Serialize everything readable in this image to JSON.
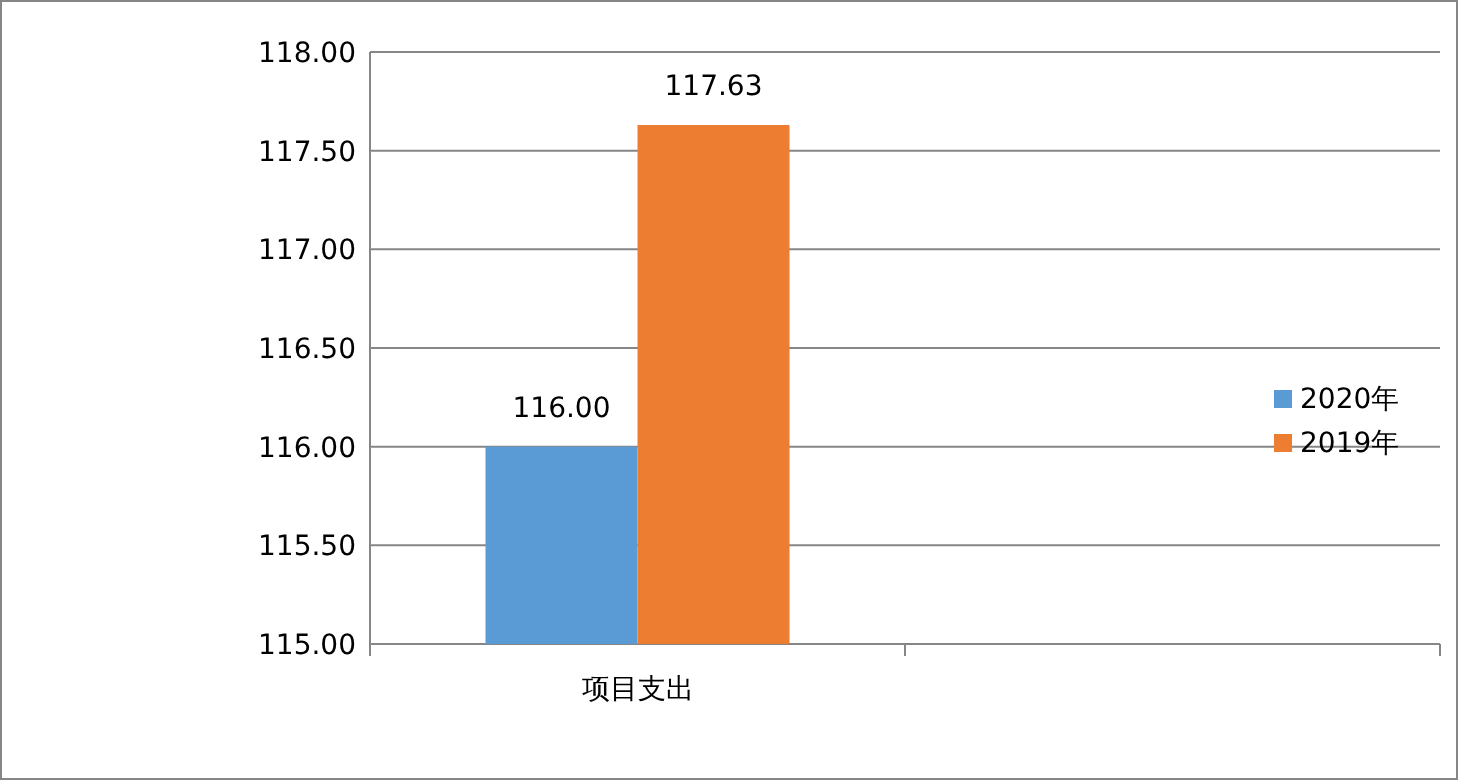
{
  "chart_data": {
    "type": "bar",
    "categories": [
      "项目支出",
      null
    ],
    "series": [
      {
        "name": "2020年",
        "color": "#5b9bd5",
        "values": [
          116.0,
          null
        ],
        "value_labels": [
          "116.00",
          null
        ]
      },
      {
        "name": "2019年",
        "color": "#ed7d31",
        "values": [
          117.63,
          null
        ],
        "value_labels": [
          "117.63",
          null
        ]
      }
    ],
    "ylim": [
      115,
      118
    ],
    "yticks": [
      {
        "value": 115,
        "label": "115.00"
      },
      {
        "value": 115.5,
        "label": "115.50"
      },
      {
        "value": 116,
        "label": "116.00"
      },
      {
        "value": 116.5,
        "label": "116.50"
      },
      {
        "value": 117,
        "label": "117.00"
      },
      {
        "value": 117.5,
        "label": "117.50"
      },
      {
        "value": 118,
        "label": "118.00"
      }
    ],
    "grid": "y",
    "legend": "right"
  }
}
